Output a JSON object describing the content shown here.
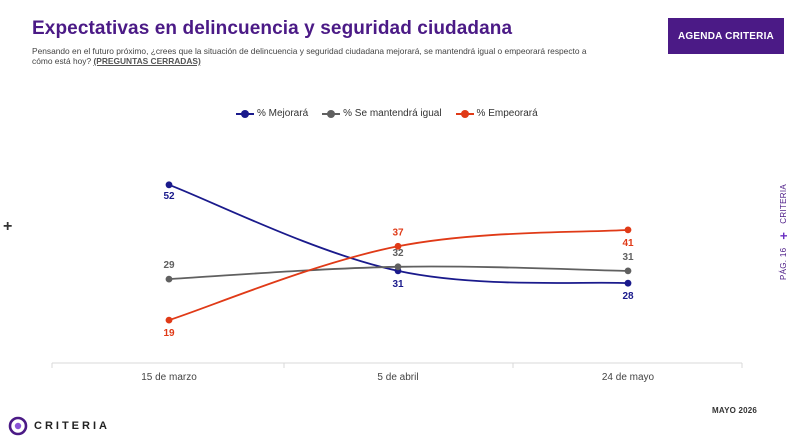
{
  "header": {
    "title": "Expectativas en delincuencia y seguridad ciudadana",
    "subtitle": "Pensando en el futuro próximo, ¿crees que la situación de delincuencia y seguridad ciudadana mejorará, se mantendrá igual o empeorará respecto a cómo está hoy?",
    "subtitle_note": "(PREGUNTAS CERRADAS)",
    "badge": "AGENDA CRITERIA"
  },
  "side": {
    "page": "PÁG. 16",
    "brand": "CRITERIA"
  },
  "footer": {
    "date": "MAYO 2026",
    "logo_text": "CRITERIA"
  },
  "decor": {
    "plus": "+"
  },
  "colors": {
    "brand": "#4b1a86",
    "accent": "#6a2fc2"
  },
  "chart_data": {
    "type": "line",
    "categories": [
      "15 de marzo",
      "5 de abril",
      "24 de mayo"
    ],
    "ylim": [
      0,
      60
    ],
    "grid": false,
    "legend_position": "top",
    "series": [
      {
        "name": "% Mejorará",
        "values": [
          52,
          31,
          28
        ],
        "color": "#1a1a8c"
      },
      {
        "name": "% Se mantendrá igual",
        "values": [
          29,
          32,
          31
        ],
        "color": "#606060"
      },
      {
        "name": "% Empeorará",
        "values": [
          19,
          37,
          41
        ],
        "color": "#e03a17"
      }
    ]
  }
}
